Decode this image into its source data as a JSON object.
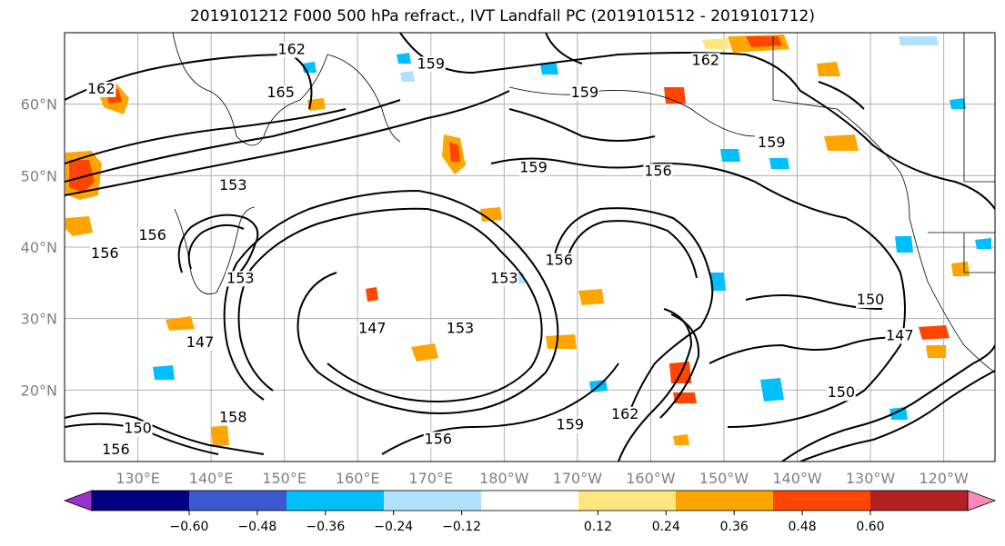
{
  "title": "2019101212 F000 500 hPa refract., IVT Landfall PC (2019101512 - 2019101712)",
  "map": {
    "projection": "equirectangular",
    "lon_range": [
      120,
      247
    ],
    "lat_range": [
      10,
      70
    ],
    "grid_color": "#b0b0b0",
    "lat_labels": [
      {
        "lat": 60,
        "text": "60°N"
      },
      {
        "lat": 50,
        "text": "50°N"
      },
      {
        "lat": 40,
        "text": "40°N"
      },
      {
        "lat": 30,
        "text": "30°N"
      },
      {
        "lat": 20,
        "text": "20°N"
      }
    ],
    "lon_labels": [
      {
        "lon": 130,
        "text": "130°E"
      },
      {
        "lon": 140,
        "text": "140°E"
      },
      {
        "lon": 150,
        "text": "150°E"
      },
      {
        "lon": 160,
        "text": "160°E"
      },
      {
        "lon": 170,
        "text": "170°E"
      },
      {
        "lon": 180,
        "text": "180°W"
      },
      {
        "lon": 190,
        "text": "170°W"
      },
      {
        "lon": 200,
        "text": "160°W"
      },
      {
        "lon": 210,
        "text": "150°W"
      },
      {
        "lon": 220,
        "text": "140°W"
      },
      {
        "lon": 230,
        "text": "130°W"
      },
      {
        "lon": 240,
        "text": "120°W"
      }
    ],
    "contour_labels": [
      {
        "text": "162",
        "lon": 125,
        "lat": 61.5
      },
      {
        "text": "165",
        "lon": 149.5,
        "lat": 61
      },
      {
        "text": "162",
        "lon": 151,
        "lat": 67
      },
      {
        "text": "159",
        "lon": 170,
        "lat": 65
      },
      {
        "text": "159",
        "lon": 191,
        "lat": 61
      },
      {
        "text": "162",
        "lon": 207.5,
        "lat": 65.5
      },
      {
        "text": "159",
        "lon": 216.5,
        "lat": 54
      },
      {
        "text": "156",
        "lon": 201,
        "lat": 50
      },
      {
        "text": "159",
        "lon": 184,
        "lat": 50.5
      },
      {
        "text": "153",
        "lon": 143,
        "lat": 48
      },
      {
        "text": "156",
        "lon": 132,
        "lat": 41
      },
      {
        "text": "156",
        "lon": 125.5,
        "lat": 38.5
      },
      {
        "text": "156",
        "lon": 187.5,
        "lat": 37.5
      },
      {
        "text": "153",
        "lon": 180,
        "lat": 35
      },
      {
        "text": "153",
        "lon": 174,
        "lat": 28
      },
      {
        "text": "147",
        "lon": 162,
        "lat": 28
      },
      {
        "text": "147",
        "lon": 138.5,
        "lat": 26
      },
      {
        "text": "150",
        "lon": 230,
        "lat": 32
      },
      {
        "text": "147",
        "lon": 234,
        "lat": 27
      },
      {
        "text": "150",
        "lon": 226,
        "lat": 19
      },
      {
        "text": "159",
        "lon": 189,
        "lat": 14.5
      },
      {
        "text": "162",
        "lon": 196.5,
        "lat": 16
      },
      {
        "text": "156",
        "lon": 171,
        "lat": 12.5
      },
      {
        "text": "150",
        "lon": 130,
        "lat": 14
      },
      {
        "text": "156",
        "lon": 127,
        "lat": 11
      },
      {
        "text": "158",
        "lon": 143,
        "lat": 15.5
      },
      {
        "text": "153",
        "lon": 144,
        "lat": 35
      }
    ]
  },
  "colorbar": {
    "colors": [
      "#9932cc",
      "#000080",
      "#3a5bd0",
      "#00bfff",
      "#b0e2ff",
      "#ffffff",
      "#ffe680",
      "#ffa500",
      "#ff4500",
      "#b22222",
      "#ff88bb"
    ],
    "ticks": [
      {
        "value": -0.6,
        "text": "−0.60"
      },
      {
        "value": -0.48,
        "text": "−0.48"
      },
      {
        "value": -0.36,
        "text": "−0.36"
      },
      {
        "value": -0.24,
        "text": "−0.24"
      },
      {
        "value": -0.12,
        "text": "−0.12"
      },
      {
        "value": 0.12,
        "text": "0.12"
      },
      {
        "value": 0.24,
        "text": "0.24"
      },
      {
        "value": 0.36,
        "text": "0.36"
      },
      {
        "value": 0.48,
        "text": "0.48"
      },
      {
        "value": 0.6,
        "text": "0.60"
      }
    ]
  }
}
